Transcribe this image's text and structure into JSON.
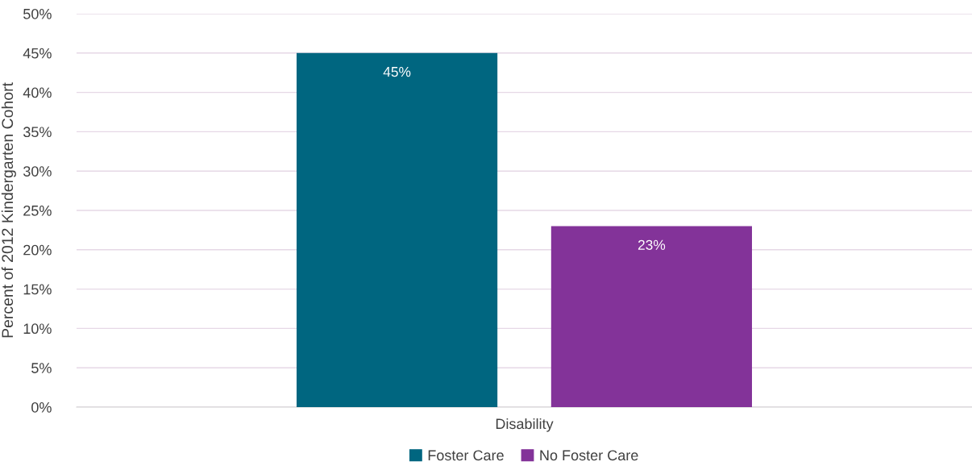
{
  "chart_data": {
    "type": "bar",
    "ylabel": "Percent of 2012 Kindergarten Cohort",
    "categories": [
      "Disability"
    ],
    "series": [
      {
        "name": "Foster Care",
        "color": "#006680",
        "values": [
          45
        ],
        "value_labels": [
          "45%"
        ]
      },
      {
        "name": "No Foster Care",
        "color": "#833399",
        "values": [
          23
        ],
        "value_labels": [
          "23%"
        ]
      }
    ],
    "ylim": [
      0,
      50
    ],
    "yticks": [
      {
        "value": 0,
        "label": "0%"
      },
      {
        "value": 5,
        "label": "5%"
      },
      {
        "value": 10,
        "label": "10%"
      },
      {
        "value": 15,
        "label": "15%"
      },
      {
        "value": 20,
        "label": "20%"
      },
      {
        "value": 25,
        "label": "25%"
      },
      {
        "value": 30,
        "label": "30%"
      },
      {
        "value": 35,
        "label": "35%"
      },
      {
        "value": 40,
        "label": "40%"
      },
      {
        "value": 45,
        "label": "45%"
      },
      {
        "value": 50,
        "label": "50%"
      }
    ],
    "grid": "y",
    "legend": "bottom"
  }
}
